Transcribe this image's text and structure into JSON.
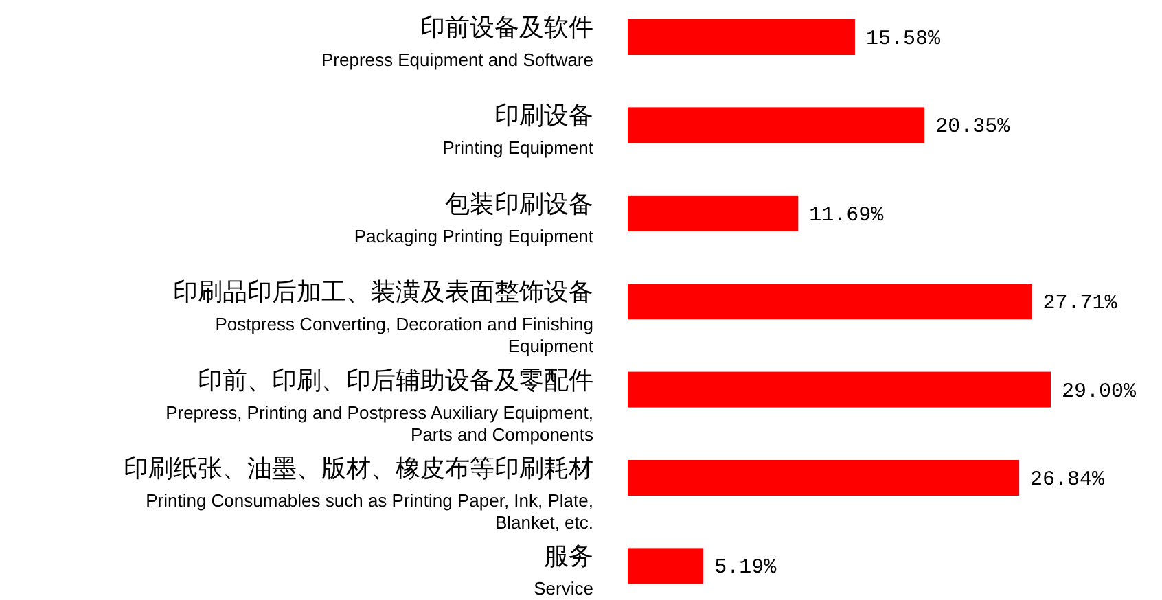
{
  "chart_data": {
    "type": "bar",
    "orientation": "horizontal",
    "categories": [
      "印前设备及软件\nPrepress Equipment and Software",
      "印刷设备\nPrinting Equipment",
      "包装印刷设备\nPackaging Printing Equipment",
      "印刷品印后加工、装潢及表面整饰设备\nPostpress Converting, Decoration and Finishing\nEquipment",
      "印前、印刷、印后辅助设备及零配件\nPrepress, Printing and Postpress Auxiliary Equipment,\nParts and Components",
      "印刷纸张、油墨、版材、橡皮布等印刷耗材\nPrinting Consumables such as Printing Paper, Ink, Plate,\nBlanket, etc.",
      "服务\nService"
    ],
    "values": [
      15.58,
      20.35,
      11.69,
      27.71,
      29.0,
      26.84,
      5.19
    ],
    "value_labels": [
      "15.58%",
      "20.35%",
      "11.69%",
      "27.71%",
      "29.00%",
      "26.84%",
      "5.19%"
    ],
    "color": "#ff0000"
  }
}
